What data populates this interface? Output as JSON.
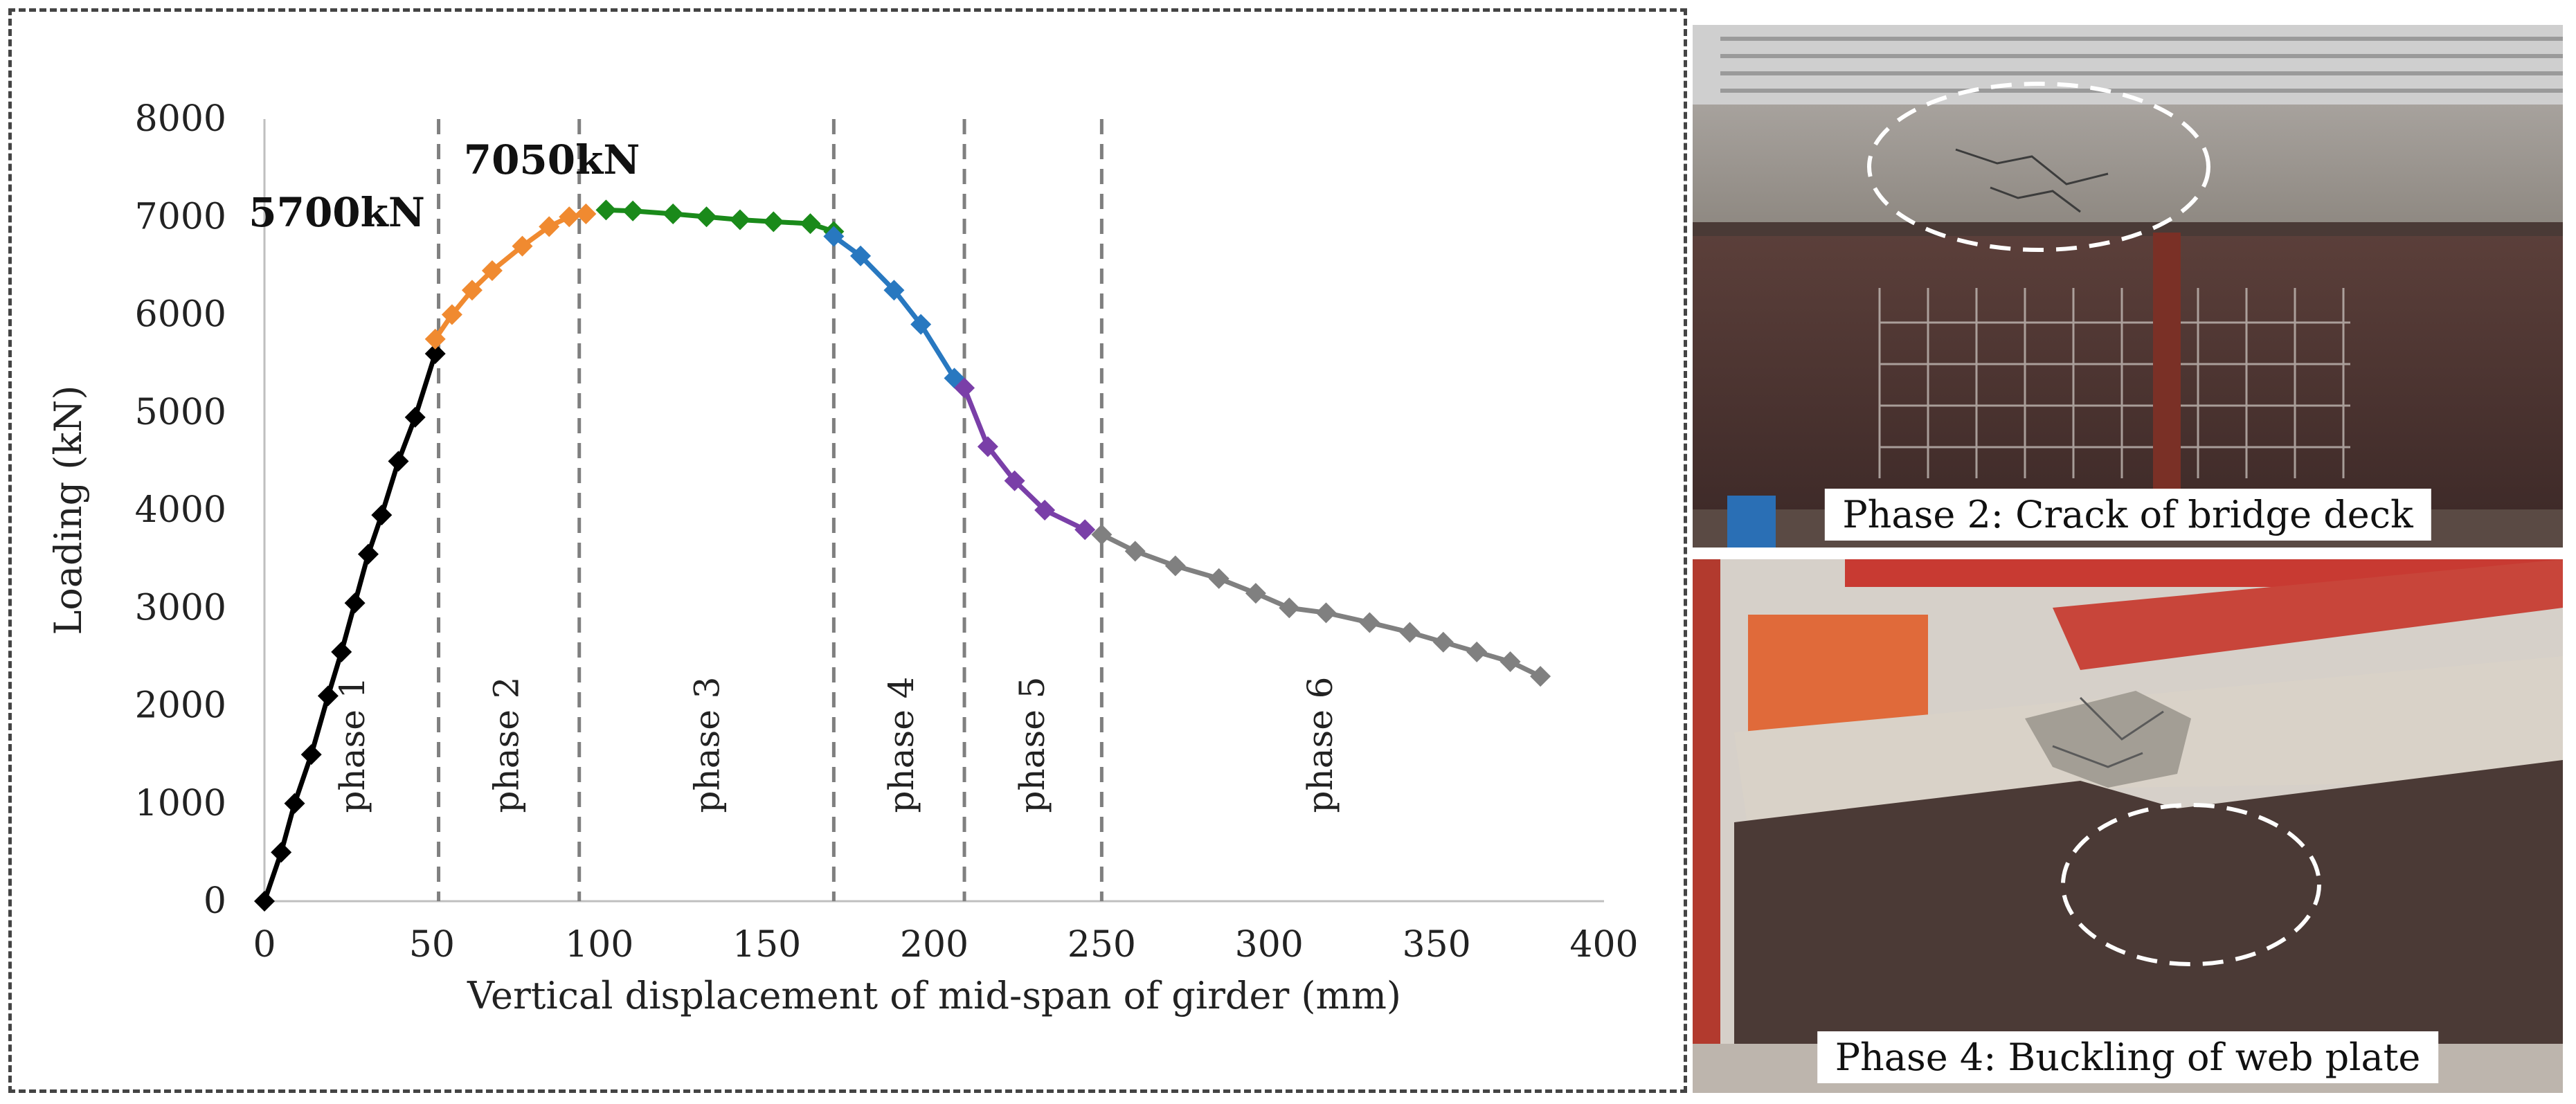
{
  "chart_data": {
    "type": "line",
    "xlabel": "Vertical displacement of mid-span of girder (mm)",
    "ylabel": "Loading (kN)",
    "xlim": [
      0,
      400
    ],
    "ylim": [
      0,
      8000
    ],
    "x_ticks": [
      0,
      50,
      100,
      150,
      200,
      250,
      300,
      350,
      400
    ],
    "y_ticks": [
      0,
      1000,
      2000,
      3000,
      4000,
      5000,
      6000,
      7000,
      8000
    ],
    "grid": false,
    "legend": "none",
    "phase_boundaries": [
      52,
      94,
      170,
      209,
      250
    ],
    "phases": [
      {
        "label": "phase 1",
        "x_center": 26
      },
      {
        "label": "phase 2",
        "x_center": 72
      },
      {
        "label": "phase 3",
        "x_center": 132
      },
      {
        "label": "phase 4",
        "x_center": 190
      },
      {
        "label": "phase 5",
        "x_center": 229
      },
      {
        "label": "phase 6",
        "x_center": 315
      }
    ],
    "annotations": [
      {
        "text": "5700kN",
        "x": 50,
        "y": 5700
      },
      {
        "text": "7050kN",
        "x": 92,
        "y": 7050
      }
    ],
    "series": [
      {
        "color": "#000000",
        "points": [
          [
            0,
            0
          ],
          [
            5,
            500
          ],
          [
            9,
            1000
          ],
          [
            14,
            1500
          ],
          [
            19,
            2100
          ],
          [
            23,
            2550
          ],
          [
            27,
            3050
          ],
          [
            31,
            3550
          ],
          [
            35,
            3950
          ],
          [
            40,
            4500
          ],
          [
            45,
            4950
          ],
          [
            51,
            5600
          ]
        ]
      },
      {
        "color": "#f08a30",
        "points": [
          [
            51,
            5750
          ],
          [
            56,
            6000
          ],
          [
            62,
            6250
          ],
          [
            68,
            6450
          ],
          [
            77,
            6700
          ],
          [
            85,
            6900
          ],
          [
            91,
            7000
          ],
          [
            96,
            7030
          ]
        ]
      },
      {
        "color": "#1a8a1a",
        "points": [
          [
            102,
            7070
          ],
          [
            110,
            7060
          ],
          [
            122,
            7030
          ],
          [
            132,
            7000
          ],
          [
            142,
            6970
          ],
          [
            152,
            6950
          ],
          [
            163,
            6930
          ],
          [
            170,
            6850
          ]
        ]
      },
      {
        "color": "#2878c0",
        "points": [
          [
            170,
            6800
          ],
          [
            178,
            6600
          ],
          [
            188,
            6250
          ],
          [
            196,
            5900
          ],
          [
            206,
            5350
          ]
        ]
      },
      {
        "color": "#7a3fa8",
        "points": [
          [
            209,
            5250
          ],
          [
            216,
            4650
          ],
          [
            224,
            4300
          ],
          [
            233,
            4000
          ],
          [
            245,
            3800
          ]
        ]
      },
      {
        "color": "#808080",
        "points": [
          [
            250,
            3750
          ],
          [
            260,
            3580
          ],
          [
            272,
            3430
          ],
          [
            285,
            3300
          ],
          [
            296,
            3150
          ],
          [
            306,
            3000
          ],
          [
            317,
            2950
          ],
          [
            330,
            2850
          ],
          [
            342,
            2750
          ],
          [
            352,
            2650
          ],
          [
            362,
            2550
          ],
          [
            372,
            2450
          ],
          [
            381,
            2300
          ]
        ]
      }
    ]
  },
  "photos": [
    {
      "caption": "Phase 2: Crack of bridge deck"
    },
    {
      "caption": "Phase 4: Buckling of web plate"
    }
  ]
}
